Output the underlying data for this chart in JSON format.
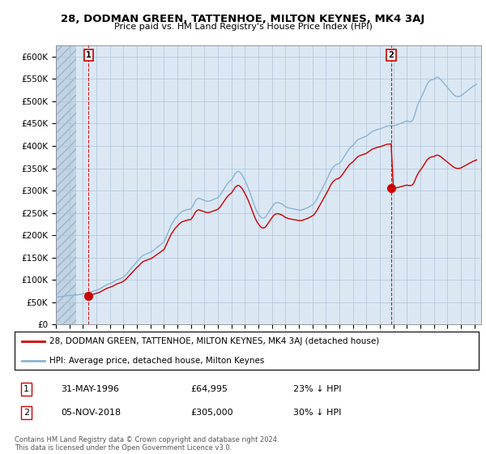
{
  "title1": "28, DODMAN GREEN, TATTENHOE, MILTON KEYNES, MK4 3AJ",
  "title2": "Price paid vs. HM Land Registry's House Price Index (HPI)",
  "ylim": [
    0,
    625000
  ],
  "yticks": [
    0,
    50000,
    100000,
    150000,
    200000,
    250000,
    300000,
    350000,
    400000,
    450000,
    500000,
    550000,
    600000
  ],
  "ytick_labels": [
    "£0",
    "£50K",
    "£100K",
    "£150K",
    "£200K",
    "£250K",
    "£300K",
    "£350K",
    "£400K",
    "£450K",
    "£500K",
    "£550K",
    "£600K"
  ],
  "xlim": [
    1994.0,
    2025.5
  ],
  "bg_color": "#dbe8f4",
  "hatch_color": "#c2d4e4",
  "grid_color": "#b0c4d8",
  "hpi_color": "#8ab4d4",
  "price_color": "#cc0000",
  "sale1_x": 1996.42,
  "sale1_y": 64995,
  "sale2_x": 2018.84,
  "sale2_y": 305000,
  "legend_label1": "28, DODMAN GREEN, TATTENHOE, MILTON KEYNES, MK4 3AJ (detached house)",
  "legend_label2": "HPI: Average price, detached house, Milton Keynes",
  "note1_label": "1",
  "note1_date": "31-MAY-1996",
  "note1_price": "£64,995",
  "note1_pct": "23% ↓ HPI",
  "note2_label": "2",
  "note2_date": "05-NOV-2018",
  "note2_price": "£305,000",
  "note2_pct": "30% ↓ HPI",
  "footer": "Contains HM Land Registry data © Crown copyright and database right 2024.\nThis data is licensed under the Open Government Licence v3.0.",
  "hpi_data": [
    [
      1994.0,
      62000
    ],
    [
      1994.083,
      61500
    ],
    [
      1994.167,
      61800
    ],
    [
      1994.25,
      62200
    ],
    [
      1994.333,
      62500
    ],
    [
      1994.417,
      63000
    ],
    [
      1994.5,
      63200
    ],
    [
      1994.583,
      63500
    ],
    [
      1994.667,
      64000
    ],
    [
      1994.75,
      64300
    ],
    [
      1994.833,
      64800
    ],
    [
      1994.917,
      65200
    ],
    [
      1995.0,
      65500
    ],
    [
      1995.083,
      65200
    ],
    [
      1995.167,
      65000
    ],
    [
      1995.25,
      65300
    ],
    [
      1995.333,
      65600
    ],
    [
      1995.417,
      66000
    ],
    [
      1995.5,
      66300
    ],
    [
      1995.583,
      66800
    ],
    [
      1995.667,
      67200
    ],
    [
      1995.75,
      67500
    ],
    [
      1995.833,
      68000
    ],
    [
      1995.917,
      68500
    ],
    [
      1996.0,
      69000
    ],
    [
      1996.083,
      69500
    ],
    [
      1996.167,
      70000
    ],
    [
      1996.25,
      70500
    ],
    [
      1996.333,
      71000
    ],
    [
      1996.417,
      71500
    ],
    [
      1996.5,
      72500
    ],
    [
      1996.583,
      73200
    ],
    [
      1996.667,
      74000
    ],
    [
      1996.75,
      74800
    ],
    [
      1996.833,
      75500
    ],
    [
      1996.917,
      76200
    ],
    [
      1997.0,
      77000
    ],
    [
      1997.083,
      78000
    ],
    [
      1997.167,
      79000
    ],
    [
      1997.25,
      80000
    ],
    [
      1997.333,
      81500
    ],
    [
      1997.417,
      83000
    ],
    [
      1997.5,
      84500
    ],
    [
      1997.583,
      86000
    ],
    [
      1997.667,
      87500
    ],
    [
      1997.75,
      89000
    ],
    [
      1997.833,
      90000
    ],
    [
      1997.917,
      91000
    ],
    [
      1998.0,
      92000
    ],
    [
      1998.083,
      93000
    ],
    [
      1998.167,
      94000
    ],
    [
      1998.25,
      95500
    ],
    [
      1998.333,
      97000
    ],
    [
      1998.417,
      98500
    ],
    [
      1998.5,
      100000
    ],
    [
      1998.583,
      101000
    ],
    [
      1998.667,
      102000
    ],
    [
      1998.75,
      103000
    ],
    [
      1998.833,
      104000
    ],
    [
      1998.917,
      105000
    ],
    [
      1999.0,
      107000
    ],
    [
      1999.083,
      109000
    ],
    [
      1999.167,
      111000
    ],
    [
      1999.25,
      114000
    ],
    [
      1999.333,
      117000
    ],
    [
      1999.417,
      120000
    ],
    [
      1999.5,
      123000
    ],
    [
      1999.583,
      126000
    ],
    [
      1999.667,
      129000
    ],
    [
      1999.75,
      132000
    ],
    [
      1999.833,
      135000
    ],
    [
      1999.917,
      138000
    ],
    [
      2000.0,
      141000
    ],
    [
      2000.083,
      143000
    ],
    [
      2000.167,
      146000
    ],
    [
      2000.25,
      149000
    ],
    [
      2000.333,
      152000
    ],
    [
      2000.417,
      154000
    ],
    [
      2000.5,
      156000
    ],
    [
      2000.583,
      157000
    ],
    [
      2000.667,
      158000
    ],
    [
      2000.75,
      159000
    ],
    [
      2000.833,
      160000
    ],
    [
      2000.917,
      161000
    ],
    [
      2001.0,
      162000
    ],
    [
      2001.083,
      163500
    ],
    [
      2001.167,
      165000
    ],
    [
      2001.25,
      167000
    ],
    [
      2001.333,
      169000
    ],
    [
      2001.417,
      171000
    ],
    [
      2001.5,
      173000
    ],
    [
      2001.583,
      175000
    ],
    [
      2001.667,
      177000
    ],
    [
      2001.75,
      179000
    ],
    [
      2001.833,
      181000
    ],
    [
      2001.917,
      183000
    ],
    [
      2002.0,
      185000
    ],
    [
      2002.083,
      190000
    ],
    [
      2002.167,
      196000
    ],
    [
      2002.25,
      202000
    ],
    [
      2002.333,
      208000
    ],
    [
      2002.417,
      214000
    ],
    [
      2002.5,
      220000
    ],
    [
      2002.583,
      225000
    ],
    [
      2002.667,
      229000
    ],
    [
      2002.75,
      233000
    ],
    [
      2002.833,
      237000
    ],
    [
      2002.917,
      240000
    ],
    [
      2003.0,
      243000
    ],
    [
      2003.083,
      246000
    ],
    [
      2003.167,
      249000
    ],
    [
      2003.25,
      251000
    ],
    [
      2003.333,
      253000
    ],
    [
      2003.417,
      254000
    ],
    [
      2003.5,
      255000
    ],
    [
      2003.583,
      256000
    ],
    [
      2003.667,
      257000
    ],
    [
      2003.75,
      257500
    ],
    [
      2003.833,
      258000
    ],
    [
      2003.917,
      258500
    ],
    [
      2004.0,
      259000
    ],
    [
      2004.083,
      263000
    ],
    [
      2004.167,
      267000
    ],
    [
      2004.25,
      272000
    ],
    [
      2004.333,
      277000
    ],
    [
      2004.417,
      280000
    ],
    [
      2004.5,
      282000
    ],
    [
      2004.583,
      283000
    ],
    [
      2004.667,
      282000
    ],
    [
      2004.75,
      281000
    ],
    [
      2004.833,
      280000
    ],
    [
      2004.917,
      279000
    ],
    [
      2005.0,
      278000
    ],
    [
      2005.083,
      277000
    ],
    [
      2005.167,
      276500
    ],
    [
      2005.25,
      276000
    ],
    [
      2005.333,
      276500
    ],
    [
      2005.417,
      277000
    ],
    [
      2005.5,
      278000
    ],
    [
      2005.583,
      279000
    ],
    [
      2005.667,
      280000
    ],
    [
      2005.75,
      281000
    ],
    [
      2005.833,
      282000
    ],
    [
      2005.917,
      283000
    ],
    [
      2006.0,
      284000
    ],
    [
      2006.083,
      287000
    ],
    [
      2006.167,
      290000
    ],
    [
      2006.25,
      294000
    ],
    [
      2006.333,
      298000
    ],
    [
      2006.417,
      302000
    ],
    [
      2006.5,
      306000
    ],
    [
      2006.583,
      310000
    ],
    [
      2006.667,
      314000
    ],
    [
      2006.75,
      317000
    ],
    [
      2006.833,
      320000
    ],
    [
      2006.917,
      322000
    ],
    [
      2007.0,
      324000
    ],
    [
      2007.083,
      328000
    ],
    [
      2007.167,
      332000
    ],
    [
      2007.25,
      337000
    ],
    [
      2007.333,
      340000
    ],
    [
      2007.417,
      342000
    ],
    [
      2007.5,
      343000
    ],
    [
      2007.583,
      342000
    ],
    [
      2007.667,
      340000
    ],
    [
      2007.75,
      337000
    ],
    [
      2007.833,
      333000
    ],
    [
      2007.917,
      328000
    ],
    [
      2008.0,
      323000
    ],
    [
      2008.083,
      318000
    ],
    [
      2008.167,
      312000
    ],
    [
      2008.25,
      306000
    ],
    [
      2008.333,
      299000
    ],
    [
      2008.417,
      292000
    ],
    [
      2008.5,
      285000
    ],
    [
      2008.583,
      277000
    ],
    [
      2008.667,
      270000
    ],
    [
      2008.75,
      263000
    ],
    [
      2008.833,
      257000
    ],
    [
      2008.917,
      252000
    ],
    [
      2009.0,
      248000
    ],
    [
      2009.083,
      244000
    ],
    [
      2009.167,
      241000
    ],
    [
      2009.25,
      239000
    ],
    [
      2009.333,
      238000
    ],
    [
      2009.417,
      238500
    ],
    [
      2009.5,
      240000
    ],
    [
      2009.583,
      243000
    ],
    [
      2009.667,
      247000
    ],
    [
      2009.75,
      251000
    ],
    [
      2009.833,
      255000
    ],
    [
      2009.917,
      259000
    ],
    [
      2010.0,
      263000
    ],
    [
      2010.083,
      267000
    ],
    [
      2010.167,
      270000
    ],
    [
      2010.25,
      272000
    ],
    [
      2010.333,
      273000
    ],
    [
      2010.417,
      273500
    ],
    [
      2010.5,
      273000
    ],
    [
      2010.583,
      272000
    ],
    [
      2010.667,
      271000
    ],
    [
      2010.75,
      270000
    ],
    [
      2010.833,
      268000
    ],
    [
      2010.917,
      266000
    ],
    [
      2011.0,
      264000
    ],
    [
      2011.083,
      263000
    ],
    [
      2011.167,
      262000
    ],
    [
      2011.25,
      261000
    ],
    [
      2011.333,
      260500
    ],
    [
      2011.417,
      260000
    ],
    [
      2011.5,
      259500
    ],
    [
      2011.583,
      259000
    ],
    [
      2011.667,
      258500
    ],
    [
      2011.75,
      258000
    ],
    [
      2011.833,
      257500
    ],
    [
      2011.917,
      257000
    ],
    [
      2012.0,
      256500
    ],
    [
      2012.083,
      256000
    ],
    [
      2012.167,
      256500
    ],
    [
      2012.25,
      257000
    ],
    [
      2012.333,
      258000
    ],
    [
      2012.417,
      259000
    ],
    [
      2012.5,
      260000
    ],
    [
      2012.583,
      261000
    ],
    [
      2012.667,
      262000
    ],
    [
      2012.75,
      263500
    ],
    [
      2012.833,
      265000
    ],
    [
      2012.917,
      266500
    ],
    [
      2013.0,
      268000
    ],
    [
      2013.083,
      270000
    ],
    [
      2013.167,
      273000
    ],
    [
      2013.25,
      277000
    ],
    [
      2013.333,
      281000
    ],
    [
      2013.417,
      286000
    ],
    [
      2013.5,
      291000
    ],
    [
      2013.583,
      296000
    ],
    [
      2013.667,
      301000
    ],
    [
      2013.75,
      306000
    ],
    [
      2013.833,
      311000
    ],
    [
      2013.917,
      316000
    ],
    [
      2014.0,
      321000
    ],
    [
      2014.083,
      326000
    ],
    [
      2014.167,
      331000
    ],
    [
      2014.25,
      337000
    ],
    [
      2014.333,
      342000
    ],
    [
      2014.417,
      347000
    ],
    [
      2014.5,
      351000
    ],
    [
      2014.583,
      354000
    ],
    [
      2014.667,
      356000
    ],
    [
      2014.75,
      358000
    ],
    [
      2014.833,
      359000
    ],
    [
      2014.917,
      360000
    ],
    [
      2015.0,
      361000
    ],
    [
      2015.083,
      364000
    ],
    [
      2015.167,
      367000
    ],
    [
      2015.25,
      371000
    ],
    [
      2015.333,
      375000
    ],
    [
      2015.417,
      379000
    ],
    [
      2015.5,
      383000
    ],
    [
      2015.583,
      387000
    ],
    [
      2015.667,
      391000
    ],
    [
      2015.75,
      394000
    ],
    [
      2015.833,
      397000
    ],
    [
      2015.917,
      399000
    ],
    [
      2016.0,
      401000
    ],
    [
      2016.083,
      404000
    ],
    [
      2016.167,
      407000
    ],
    [
      2016.25,
      410000
    ],
    [
      2016.333,
      413000
    ],
    [
      2016.417,
      415000
    ],
    [
      2016.5,
      416000
    ],
    [
      2016.583,
      417000
    ],
    [
      2016.667,
      418000
    ],
    [
      2016.75,
      419000
    ],
    [
      2016.833,
      420000
    ],
    [
      2016.917,
      421000
    ],
    [
      2017.0,
      422000
    ],
    [
      2017.083,
      424000
    ],
    [
      2017.167,
      426000
    ],
    [
      2017.25,
      428000
    ],
    [
      2017.333,
      430000
    ],
    [
      2017.417,
      432000
    ],
    [
      2017.5,
      433000
    ],
    [
      2017.583,
      434000
    ],
    [
      2017.667,
      435000
    ],
    [
      2017.75,
      436000
    ],
    [
      2017.833,
      437000
    ],
    [
      2017.917,
      437500
    ],
    [
      2018.0,
      438000
    ],
    [
      2018.083,
      439000
    ],
    [
      2018.167,
      440000
    ],
    [
      2018.25,
      441000
    ],
    [
      2018.333,
      442000
    ],
    [
      2018.417,
      443000
    ],
    [
      2018.5,
      444000
    ],
    [
      2018.583,
      444500
    ],
    [
      2018.667,
      444800
    ],
    [
      2018.75,
      445000
    ],
    [
      2018.833,
      445200
    ],
    [
      2018.917,
      445300
    ],
    [
      2019.0,
      445000
    ],
    [
      2019.083,
      445500
    ],
    [
      2019.167,
      446000
    ],
    [
      2019.25,
      447000
    ],
    [
      2019.333,
      448000
    ],
    [
      2019.417,
      449000
    ],
    [
      2019.5,
      450000
    ],
    [
      2019.583,
      451000
    ],
    [
      2019.667,
      452000
    ],
    [
      2019.75,
      453000
    ],
    [
      2019.833,
      454000
    ],
    [
      2019.917,
      455000
    ],
    [
      2020.0,
      456000
    ],
    [
      2020.083,
      455000
    ],
    [
      2020.167,
      454000
    ],
    [
      2020.25,
      454500
    ],
    [
      2020.333,
      455000
    ],
    [
      2020.417,
      457000
    ],
    [
      2020.5,
      462000
    ],
    [
      2020.583,
      470000
    ],
    [
      2020.667,
      479000
    ],
    [
      2020.75,
      487000
    ],
    [
      2020.833,
      494000
    ],
    [
      2020.917,
      500000
    ],
    [
      2021.0,
      505000
    ],
    [
      2021.083,
      510000
    ],
    [
      2021.167,
      515000
    ],
    [
      2021.25,
      521000
    ],
    [
      2021.333,
      527000
    ],
    [
      2021.417,
      533000
    ],
    [
      2021.5,
      538000
    ],
    [
      2021.583,
      542000
    ],
    [
      2021.667,
      545000
    ],
    [
      2021.75,
      547000
    ],
    [
      2021.833,
      548000
    ],
    [
      2021.917,
      548500
    ],
    [
      2022.0,
      549000
    ],
    [
      2022.083,
      551000
    ],
    [
      2022.167,
      553000
    ],
    [
      2022.25,
      554000
    ],
    [
      2022.333,
      553000
    ],
    [
      2022.417,
      551000
    ],
    [
      2022.5,
      549000
    ],
    [
      2022.583,
      546000
    ],
    [
      2022.667,
      543000
    ],
    [
      2022.75,
      540000
    ],
    [
      2022.833,
      537000
    ],
    [
      2022.917,
      534000
    ],
    [
      2023.0,
      531000
    ],
    [
      2023.083,
      528000
    ],
    [
      2023.167,
      525000
    ],
    [
      2023.25,
      522000
    ],
    [
      2023.333,
      519000
    ],
    [
      2023.417,
      516000
    ],
    [
      2023.5,
      514000
    ],
    [
      2023.583,
      512000
    ],
    [
      2023.667,
      511000
    ],
    [
      2023.75,
      510000
    ],
    [
      2023.833,
      510500
    ],
    [
      2023.917,
      511000
    ],
    [
      2024.0,
      512000
    ],
    [
      2024.083,
      514000
    ],
    [
      2024.167,
      516000
    ],
    [
      2024.25,
      518000
    ],
    [
      2024.333,
      520000
    ],
    [
      2024.417,
      522000
    ],
    [
      2024.5,
      524000
    ],
    [
      2024.583,
      526000
    ],
    [
      2024.667,
      528000
    ],
    [
      2024.75,
      530000
    ],
    [
      2024.833,
      532000
    ],
    [
      2024.917,
      534000
    ],
    [
      2025.0,
      535000
    ],
    [
      2025.083,
      537000
    ],
    [
      2025.167,
      538000
    ]
  ]
}
